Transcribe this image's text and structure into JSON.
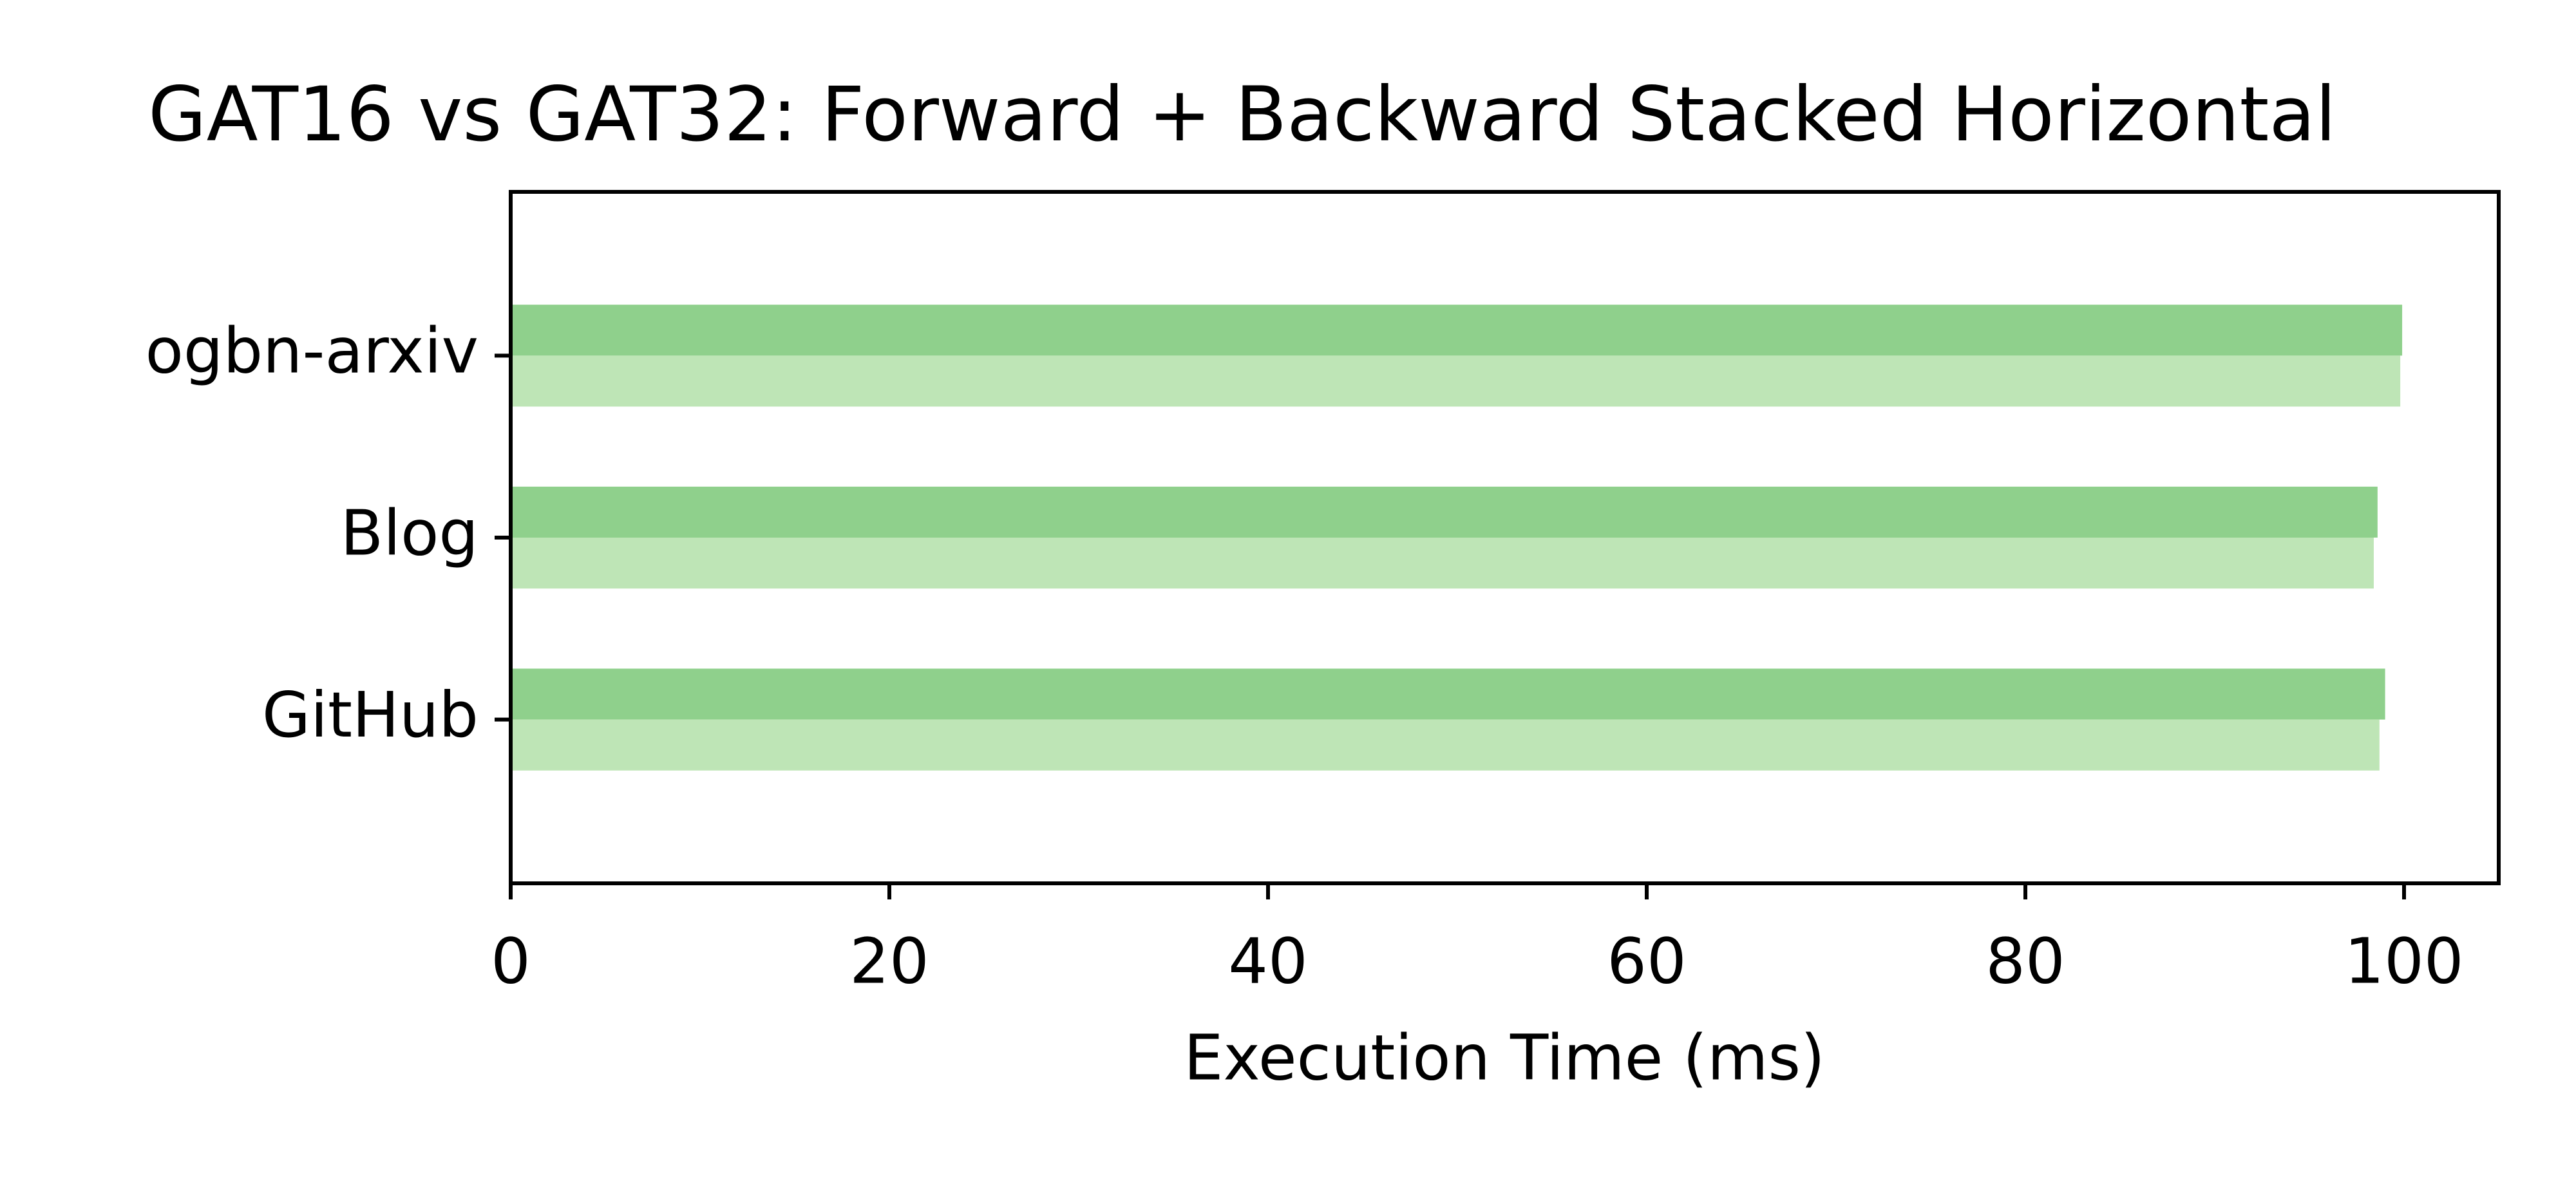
{
  "chart_data": {
    "type": "barh",
    "title": "GAT16 vs GAT32: Forward + Backward Stacked Horizontal",
    "x_label": "Execution Time (ms)",
    "categories": [
      "ogbn-arxiv",
      "Blog",
      "GitHub"
    ],
    "series": [
      {
        "color": "#8fd08c",
        "values": [
          99.9,
          98.6,
          99.0
        ]
      },
      {
        "color": "#bee5b6",
        "values": [
          99.8,
          98.4,
          98.7
        ]
      }
    ],
    "xlim": [
      0,
      105
    ],
    "xticks": [
      0,
      20,
      40,
      60,
      80,
      100
    ],
    "grid": false
  }
}
